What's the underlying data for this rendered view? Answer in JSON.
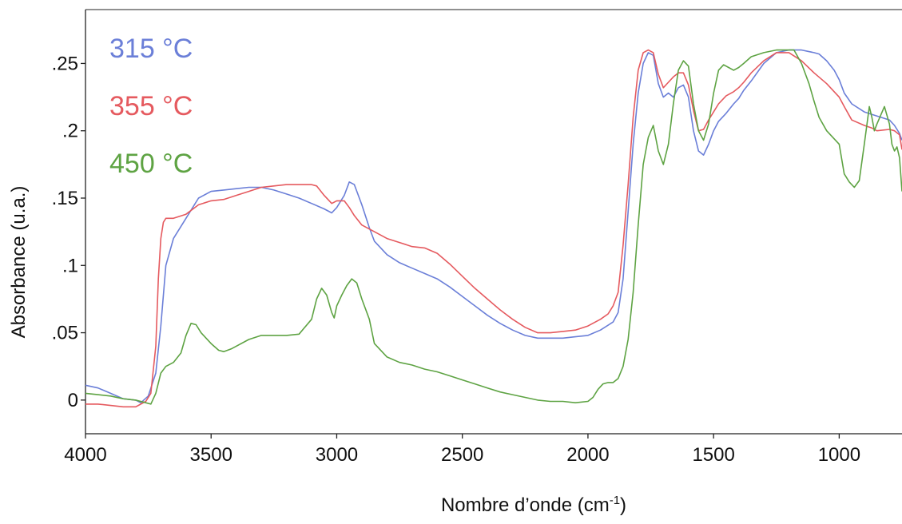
{
  "chart_data": {
    "type": "line",
    "xlabel": "Nombre d’onde (cm",
    "xlabel_superscript": "-1",
    "xlabel_suffix": ")",
    "ylabel": "Absorbance (u.a.)",
    "xlim": [
      4000,
      750
    ],
    "x_reversed": true,
    "ylim": [
      -0.025,
      0.29
    ],
    "x_ticks": [
      4000,
      3500,
      3000,
      2500,
      2000,
      1500,
      1000
    ],
    "x_tick_labels": [
      "4000",
      "3500",
      "3000",
      "2500",
      "2000",
      "1500",
      "1000"
    ],
    "y_ticks": [
      0,
      0.05,
      0.1,
      0.15,
      0.2,
      0.25
    ],
    "y_tick_labels": [
      "0",
      ".05",
      ".1",
      ".15",
      ".2",
      ".25"
    ],
    "grid": false,
    "legend_position": "top-left",
    "series": [
      {
        "name": "315 °C",
        "color": "#6b7fd8",
        "points": [
          [
            4000,
            0.011
          ],
          [
            3950,
            0.009
          ],
          [
            3900,
            0.005
          ],
          [
            3850,
            0.001
          ],
          [
            3800,
            0.0
          ],
          [
            3780,
            -0.002
          ],
          [
            3750,
            0.003
          ],
          [
            3720,
            0.02
          ],
          [
            3700,
            0.055
          ],
          [
            3680,
            0.1
          ],
          [
            3650,
            0.12
          ],
          [
            3600,
            0.135
          ],
          [
            3550,
            0.15
          ],
          [
            3500,
            0.155
          ],
          [
            3450,
            0.156
          ],
          [
            3400,
            0.157
          ],
          [
            3350,
            0.158
          ],
          [
            3300,
            0.158
          ],
          [
            3250,
            0.156
          ],
          [
            3200,
            0.153
          ],
          [
            3150,
            0.15
          ],
          [
            3100,
            0.146
          ],
          [
            3050,
            0.142
          ],
          [
            3020,
            0.139
          ],
          [
            3000,
            0.143
          ],
          [
            2970,
            0.152
          ],
          [
            2950,
            0.162
          ],
          [
            2930,
            0.16
          ],
          [
            2900,
            0.145
          ],
          [
            2870,
            0.128
          ],
          [
            2850,
            0.118
          ],
          [
            2800,
            0.108
          ],
          [
            2750,
            0.102
          ],
          [
            2700,
            0.098
          ],
          [
            2650,
            0.094
          ],
          [
            2600,
            0.09
          ],
          [
            2550,
            0.084
          ],
          [
            2500,
            0.077
          ],
          [
            2450,
            0.07
          ],
          [
            2400,
            0.063
          ],
          [
            2350,
            0.057
          ],
          [
            2300,
            0.052
          ],
          [
            2250,
            0.048
          ],
          [
            2200,
            0.046
          ],
          [
            2150,
            0.046
          ],
          [
            2100,
            0.046
          ],
          [
            2050,
            0.047
          ],
          [
            2000,
            0.048
          ],
          [
            1950,
            0.052
          ],
          [
            1900,
            0.058
          ],
          [
            1880,
            0.065
          ],
          [
            1860,
            0.09
          ],
          [
            1840,
            0.14
          ],
          [
            1820,
            0.19
          ],
          [
            1800,
            0.228
          ],
          [
            1780,
            0.25
          ],
          [
            1760,
            0.258
          ],
          [
            1740,
            0.256
          ],
          [
            1720,
            0.235
          ],
          [
            1700,
            0.225
          ],
          [
            1680,
            0.228
          ],
          [
            1660,
            0.225
          ],
          [
            1640,
            0.232
          ],
          [
            1620,
            0.234
          ],
          [
            1600,
            0.225
          ],
          [
            1580,
            0.2
          ],
          [
            1560,
            0.185
          ],
          [
            1540,
            0.182
          ],
          [
            1520,
            0.19
          ],
          [
            1500,
            0.2
          ],
          [
            1480,
            0.207
          ],
          [
            1450,
            0.213
          ],
          [
            1420,
            0.22
          ],
          [
            1400,
            0.224
          ],
          [
            1380,
            0.23
          ],
          [
            1350,
            0.237
          ],
          [
            1300,
            0.25
          ],
          [
            1250,
            0.258
          ],
          [
            1200,
            0.26
          ],
          [
            1150,
            0.26
          ],
          [
            1100,
            0.258
          ],
          [
            1080,
            0.257
          ],
          [
            1050,
            0.252
          ],
          [
            1020,
            0.245
          ],
          [
            1000,
            0.238
          ],
          [
            980,
            0.228
          ],
          [
            950,
            0.22
          ],
          [
            900,
            0.214
          ],
          [
            850,
            0.211
          ],
          [
            800,
            0.208
          ],
          [
            780,
            0.204
          ],
          [
            760,
            0.198
          ],
          [
            750,
            0.193
          ]
        ]
      },
      {
        "name": "355 °C",
        "color": "#e55a5f",
        "points": [
          [
            4000,
            -0.003
          ],
          [
            3950,
            -0.003
          ],
          [
            3900,
            -0.004
          ],
          [
            3850,
            -0.005
          ],
          [
            3800,
            -0.005
          ],
          [
            3760,
            -0.001
          ],
          [
            3740,
            0.005
          ],
          [
            3720,
            0.04
          ],
          [
            3710,
            0.09
          ],
          [
            3700,
            0.12
          ],
          [
            3690,
            0.132
          ],
          [
            3680,
            0.135
          ],
          [
            3650,
            0.135
          ],
          [
            3600,
            0.138
          ],
          [
            3550,
            0.145
          ],
          [
            3500,
            0.148
          ],
          [
            3450,
            0.149
          ],
          [
            3400,
            0.152
          ],
          [
            3350,
            0.155
          ],
          [
            3300,
            0.158
          ],
          [
            3250,
            0.159
          ],
          [
            3200,
            0.16
          ],
          [
            3150,
            0.16
          ],
          [
            3100,
            0.16
          ],
          [
            3080,
            0.159
          ],
          [
            3050,
            0.152
          ],
          [
            3020,
            0.146
          ],
          [
            3000,
            0.148
          ],
          [
            2970,
            0.148
          ],
          [
            2950,
            0.143
          ],
          [
            2930,
            0.137
          ],
          [
            2900,
            0.13
          ],
          [
            2850,
            0.125
          ],
          [
            2800,
            0.12
          ],
          [
            2750,
            0.117
          ],
          [
            2700,
            0.114
          ],
          [
            2650,
            0.113
          ],
          [
            2600,
            0.109
          ],
          [
            2550,
            0.101
          ],
          [
            2500,
            0.092
          ],
          [
            2450,
            0.083
          ],
          [
            2400,
            0.075
          ],
          [
            2350,
            0.067
          ],
          [
            2300,
            0.06
          ],
          [
            2250,
            0.054
          ],
          [
            2200,
            0.05
          ],
          [
            2150,
            0.05
          ],
          [
            2100,
            0.051
          ],
          [
            2050,
            0.052
          ],
          [
            2000,
            0.055
          ],
          [
            1950,
            0.06
          ],
          [
            1920,
            0.064
          ],
          [
            1900,
            0.07
          ],
          [
            1880,
            0.08
          ],
          [
            1860,
            0.115
          ],
          [
            1840,
            0.16
          ],
          [
            1820,
            0.21
          ],
          [
            1800,
            0.245
          ],
          [
            1780,
            0.258
          ],
          [
            1760,
            0.26
          ],
          [
            1740,
            0.258
          ],
          [
            1720,
            0.242
          ],
          [
            1700,
            0.232
          ],
          [
            1680,
            0.236
          ],
          [
            1660,
            0.24
          ],
          [
            1640,
            0.243
          ],
          [
            1620,
            0.243
          ],
          [
            1600,
            0.234
          ],
          [
            1580,
            0.215
          ],
          [
            1560,
            0.2
          ],
          [
            1540,
            0.201
          ],
          [
            1520,
            0.208
          ],
          [
            1500,
            0.214
          ],
          [
            1480,
            0.22
          ],
          [
            1450,
            0.226
          ],
          [
            1420,
            0.229
          ],
          [
            1400,
            0.232
          ],
          [
            1380,
            0.236
          ],
          [
            1350,
            0.243
          ],
          [
            1300,
            0.252
          ],
          [
            1250,
            0.258
          ],
          [
            1200,
            0.258
          ],
          [
            1150,
            0.252
          ],
          [
            1100,
            0.243
          ],
          [
            1050,
            0.235
          ],
          [
            1000,
            0.225
          ],
          [
            980,
            0.218
          ],
          [
            950,
            0.208
          ],
          [
            900,
            0.204
          ],
          [
            870,
            0.202
          ],
          [
            850,
            0.2
          ],
          [
            800,
            0.201
          ],
          [
            780,
            0.2
          ],
          [
            760,
            0.197
          ],
          [
            750,
            0.186
          ]
        ]
      },
      {
        "name": "450 °C",
        "color": "#5ea343",
        "points": [
          [
            4000,
            0.005
          ],
          [
            3950,
            0.004
          ],
          [
            3900,
            0.003
          ],
          [
            3850,
            0.001
          ],
          [
            3800,
            0.0
          ],
          [
            3760,
            -0.002
          ],
          [
            3740,
            -0.003
          ],
          [
            3720,
            0.005
          ],
          [
            3700,
            0.02
          ],
          [
            3680,
            0.025
          ],
          [
            3650,
            0.028
          ],
          [
            3620,
            0.035
          ],
          [
            3600,
            0.048
          ],
          [
            3580,
            0.057
          ],
          [
            3560,
            0.056
          ],
          [
            3540,
            0.05
          ],
          [
            3500,
            0.042
          ],
          [
            3470,
            0.037
          ],
          [
            3450,
            0.036
          ],
          [
            3420,
            0.038
          ],
          [
            3400,
            0.04
          ],
          [
            3350,
            0.045
          ],
          [
            3300,
            0.048
          ],
          [
            3250,
            0.048
          ],
          [
            3200,
            0.048
          ],
          [
            3150,
            0.049
          ],
          [
            3100,
            0.06
          ],
          [
            3080,
            0.075
          ],
          [
            3060,
            0.083
          ],
          [
            3040,
            0.078
          ],
          [
            3020,
            0.065
          ],
          [
            3010,
            0.061
          ],
          [
            3000,
            0.07
          ],
          [
            2980,
            0.078
          ],
          [
            2960,
            0.085
          ],
          [
            2940,
            0.09
          ],
          [
            2920,
            0.087
          ],
          [
            2900,
            0.075
          ],
          [
            2870,
            0.06
          ],
          [
            2850,
            0.042
          ],
          [
            2800,
            0.032
          ],
          [
            2750,
            0.028
          ],
          [
            2700,
            0.026
          ],
          [
            2650,
            0.023
          ],
          [
            2600,
            0.021
          ],
          [
            2550,
            0.018
          ],
          [
            2500,
            0.015
          ],
          [
            2450,
            0.012
          ],
          [
            2400,
            0.009
          ],
          [
            2350,
            0.006
          ],
          [
            2300,
            0.004
          ],
          [
            2250,
            0.002
          ],
          [
            2200,
            0.0
          ],
          [
            2150,
            -0.001
          ],
          [
            2100,
            -0.001
          ],
          [
            2050,
            -0.002
          ],
          [
            2000,
            -0.001
          ],
          [
            1980,
            0.002
          ],
          [
            1960,
            0.008
          ],
          [
            1940,
            0.012
          ],
          [
            1920,
            0.013
          ],
          [
            1900,
            0.013
          ],
          [
            1880,
            0.016
          ],
          [
            1860,
            0.025
          ],
          [
            1840,
            0.045
          ],
          [
            1820,
            0.08
          ],
          [
            1800,
            0.13
          ],
          [
            1780,
            0.175
          ],
          [
            1760,
            0.195
          ],
          [
            1740,
            0.204
          ],
          [
            1720,
            0.185
          ],
          [
            1700,
            0.175
          ],
          [
            1680,
            0.19
          ],
          [
            1660,
            0.22
          ],
          [
            1640,
            0.245
          ],
          [
            1620,
            0.252
          ],
          [
            1600,
            0.248
          ],
          [
            1580,
            0.22
          ],
          [
            1560,
            0.2
          ],
          [
            1540,
            0.193
          ],
          [
            1520,
            0.205
          ],
          [
            1500,
            0.228
          ],
          [
            1480,
            0.245
          ],
          [
            1460,
            0.249
          ],
          [
            1440,
            0.247
          ],
          [
            1420,
            0.245
          ],
          [
            1400,
            0.247
          ],
          [
            1380,
            0.25
          ],
          [
            1350,
            0.255
          ],
          [
            1300,
            0.258
          ],
          [
            1250,
            0.26
          ],
          [
            1200,
            0.26
          ],
          [
            1180,
            0.26
          ],
          [
            1150,
            0.25
          ],
          [
            1120,
            0.235
          ],
          [
            1100,
            0.222
          ],
          [
            1080,
            0.21
          ],
          [
            1050,
            0.2
          ],
          [
            1000,
            0.19
          ],
          [
            980,
            0.168
          ],
          [
            960,
            0.162
          ],
          [
            940,
            0.158
          ],
          [
            920,
            0.163
          ],
          [
            900,
            0.19
          ],
          [
            880,
            0.218
          ],
          [
            870,
            0.21
          ],
          [
            860,
            0.2
          ],
          [
            850,
            0.205
          ],
          [
            820,
            0.218
          ],
          [
            800,
            0.205
          ],
          [
            790,
            0.19
          ],
          [
            780,
            0.185
          ],
          [
            770,
            0.188
          ],
          [
            760,
            0.18
          ],
          [
            750,
            0.155
          ]
        ]
      }
    ]
  }
}
